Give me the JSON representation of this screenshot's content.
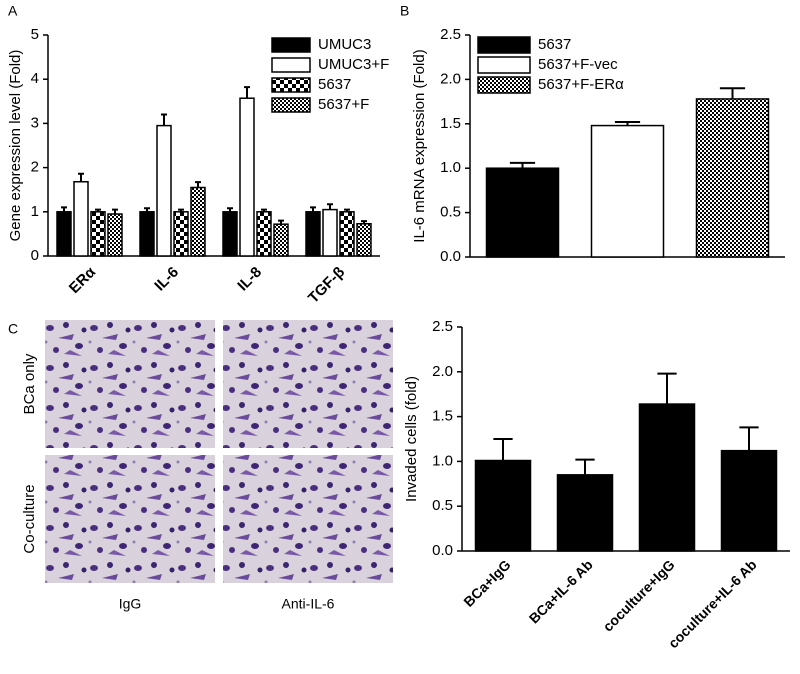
{
  "figure": {
    "panel_labels": [
      "A",
      "B",
      "C"
    ],
    "images": {
      "rows": [
        "BCa only",
        "Co-culture"
      ],
      "columns": [
        "IgG",
        "Anti-IL-6"
      ]
    }
  },
  "chart_data": [
    {
      "type": "bar",
      "ylabel": "Gene expression level (Fold)",
      "categories": [
        "ERα",
        "IL-6",
        "IL-8",
        "TGF-β"
      ],
      "series": [
        {
          "name": "UMUC3",
          "fill": "solid",
          "values": [
            1.0,
            1.0,
            1.0,
            1.0
          ],
          "errors": [
            0.1,
            0.08,
            0.08,
            0.1
          ]
        },
        {
          "name": "UMUC3+F",
          "fill": "open",
          "values": [
            1.68,
            2.95,
            3.57,
            1.05
          ],
          "errors": [
            0.18,
            0.25,
            0.25,
            0.12
          ]
        },
        {
          "name": "5637",
          "fill": "checker",
          "values": [
            1.0,
            1.0,
            1.0,
            1.0
          ],
          "errors": [
            0.05,
            0.05,
            0.05,
            0.05
          ]
        },
        {
          "name": "5637+F",
          "fill": "fine-checker",
          "values": [
            0.95,
            1.55,
            0.72,
            0.73
          ],
          "errors": [
            0.1,
            0.12,
            0.08,
            0.06
          ]
        }
      ],
      "ylim": [
        0,
        5
      ],
      "yticks": [
        0,
        1,
        2,
        3,
        4,
        5
      ],
      "legend": "top-right"
    },
    {
      "type": "bar",
      "ylabel": "IL-6 mRNA expression (Fold)",
      "categories": [
        "5637",
        "5637+F-vec",
        "5637+F-ERα"
      ],
      "fills": [
        "solid",
        "open",
        "fine-checker"
      ],
      "values": [
        1.0,
        1.48,
        1.78
      ],
      "errors": [
        0.06,
        0.04,
        0.12
      ],
      "ylim": [
        0,
        2.5
      ],
      "yticks": [
        {
          "value": 0,
          "label": "0.0"
        },
        {
          "value": 0.5,
          "label": "0.5"
        },
        {
          "value": 1,
          "label": "1.0"
        },
        {
          "value": 1.5,
          "label": "1.5"
        },
        {
          "value": 2,
          "label": "2.0"
        },
        {
          "value": 2.5,
          "label": "2.5"
        }
      ],
      "legend": "top-left"
    },
    {
      "type": "bar",
      "ylabel": "Invaded cells (fold)",
      "categories": [
        "BCa+IgG",
        "BCa+IL-6 Ab",
        "coculture+IgG",
        "coculture+IL-6 Ab"
      ],
      "fills": [
        "solid",
        "solid",
        "solid",
        "solid"
      ],
      "values": [
        1.01,
        0.85,
        1.64,
        1.12
      ],
      "errors": [
        0.24,
        0.17,
        0.34,
        0.26
      ],
      "ylim": [
        0,
        2.5
      ],
      "yticks": [
        {
          "value": 0,
          "label": "0.0"
        },
        {
          "value": 0.5,
          "label": "0.5"
        },
        {
          "value": 1,
          "label": "1.0"
        },
        {
          "value": 1.5,
          "label": "1.5"
        },
        {
          "value": 2,
          "label": "2.0"
        },
        {
          "value": 2.5,
          "label": "2.5"
        }
      ]
    }
  ]
}
